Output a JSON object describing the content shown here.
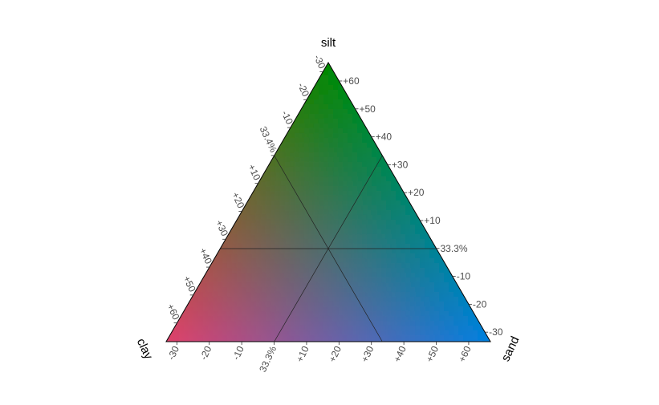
{
  "chart_data": {
    "type": "ternary",
    "axes": {
      "top": "silt",
      "right": "sand",
      "left": "clay"
    },
    "center": {
      "clay": 33.3,
      "silt": 33.4,
      "sand": 33.3
    },
    "center_labels": {
      "silt": "33.4%",
      "sand": "33.3%",
      "clay": "33.3%"
    },
    "ticks": {
      "silt": [
        "-30",
        "-20",
        "-10",
        "+10",
        "+20",
        "+30",
        "+40",
        "+50",
        "+60"
      ],
      "sand": [
        "-30",
        "-20",
        "-10",
        "+10",
        "+20",
        "+30",
        "+40",
        "+50",
        "+60"
      ],
      "clay": [
        "-30",
        "-20",
        "-10",
        "+10",
        "+20",
        "+30",
        "+40",
        "+50",
        "+60"
      ]
    },
    "tick_values": [
      -30,
      -20,
      -10,
      10,
      20,
      30,
      40,
      50,
      60
    ],
    "colors": {
      "silt": "#008a00",
      "sand": "#0080e0",
      "clay": "#e0406a"
    },
    "grid": "center lines only"
  }
}
